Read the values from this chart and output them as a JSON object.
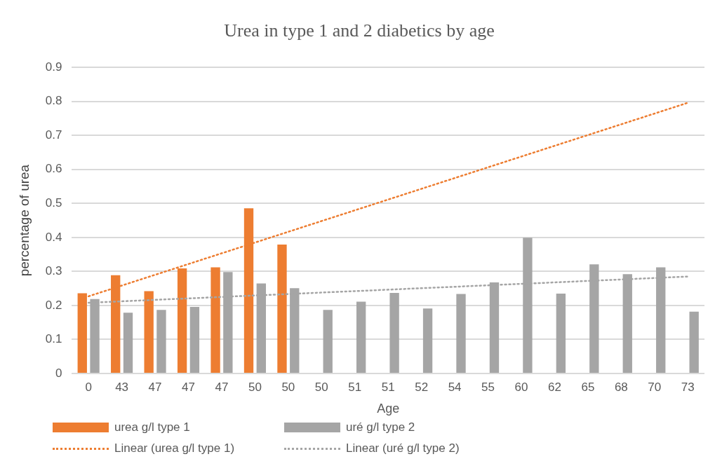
{
  "chart_data": {
    "type": "bar",
    "title": "Urea in type 1 and 2 diabetics by age",
    "xlabel": "Age",
    "ylabel": "percentage of urea",
    "categories": [
      "0",
      "43",
      "47",
      "47",
      "47",
      "50",
      "50",
      "50",
      "51",
      "51",
      "52",
      "54",
      "55",
      "60",
      "62",
      "65",
      "68",
      "70",
      "73"
    ],
    "series": [
      {
        "name": "urea g/l type 1",
        "color": "#ed7d31",
        "values": [
          0.236,
          0.289,
          0.242,
          0.309,
          0.312,
          0.486,
          0.379,
          null,
          null,
          null,
          null,
          null,
          null,
          null,
          null,
          null,
          null,
          null,
          null
        ]
      },
      {
        "name": "uré g/l type 2",
        "color": "#a5a5a5",
        "values": [
          0.219,
          0.179,
          0.187,
          0.196,
          0.298,
          0.265,
          0.251,
          0.187,
          0.211,
          0.237,
          0.191,
          0.234,
          0.268,
          0.399,
          0.235,
          0.321,
          0.292,
          0.312,
          0.182
        ]
      },
      {
        "name": "Linear (urea g/l type 1)",
        "type": "line",
        "color": "#ed7d31",
        "line_style": "dotted",
        "marker": "none",
        "values": [
          0.227,
          null,
          null,
          null,
          null,
          null,
          null,
          null,
          null,
          null,
          null,
          null,
          null,
          null,
          null,
          null,
          null,
          null,
          0.796
        ]
      },
      {
        "name": "Linear (uré g/l type 2)",
        "type": "line",
        "color": "#a5a5a5",
        "line_style": "dotted",
        "marker": "none",
        "values": [
          0.208,
          null,
          null,
          null,
          null,
          null,
          null,
          null,
          null,
          null,
          null,
          null,
          null,
          null,
          null,
          null,
          null,
          null,
          0.285
        ]
      }
    ],
    "ylim": [
      0,
      0.9
    ],
    "yticks": [
      0,
      0.1,
      0.2,
      0.3,
      0.4,
      0.5,
      0.6,
      0.7,
      0.8,
      0.9
    ],
    "grid": "y",
    "legend": "bottom"
  }
}
